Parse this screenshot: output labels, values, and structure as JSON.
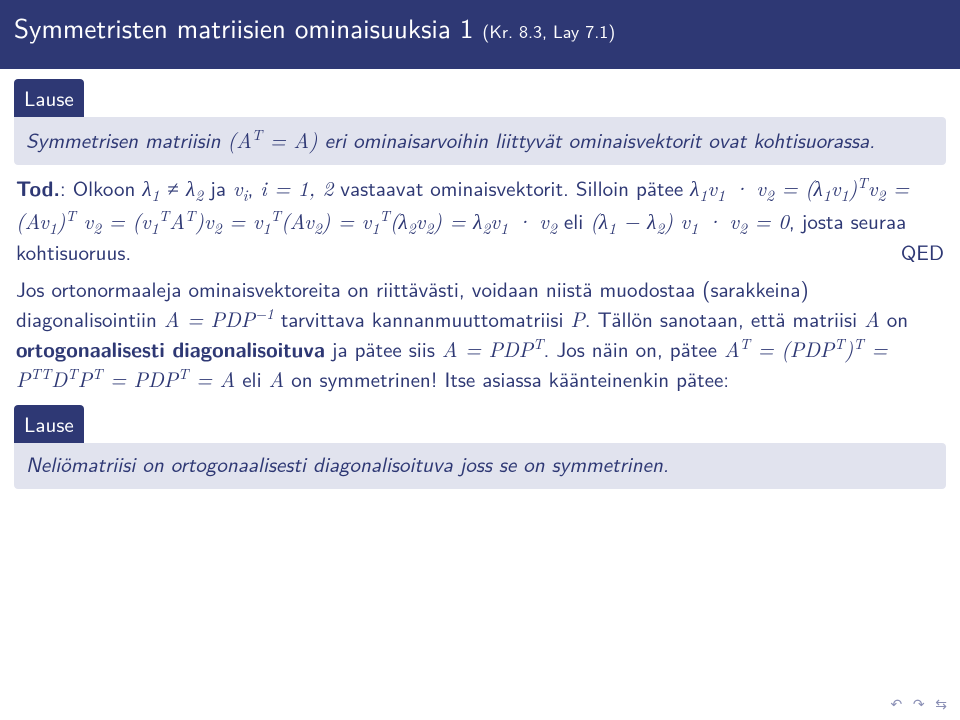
{
  "colors": {
    "header_bg": "#2e3874",
    "header_fg": "#ffffff",
    "body_fg": "#2e3874",
    "box_bg": "#e1e3ee",
    "nav_fg": "#8a8fb5",
    "page_bg": "#ffffff"
  },
  "typography": {
    "title_fontsize": 27,
    "title_ref_fontsize": 18,
    "body_fontsize": 21,
    "nav_fontsize": 14,
    "line_height": 1.32,
    "font_family_sans": "Computer Modern Sans",
    "font_family_serif": "Computer Modern Roman"
  },
  "title": {
    "main": "Symmetristen matriisien ominaisuuksia 1",
    "ref": "(Kr. 8.3, Lay 7.1)"
  },
  "box1": {
    "head": "Lause",
    "body_pre": "Symmetrisen matriisin ",
    "body_formula": "(Aᵀ = A)",
    "body_post": " eri ominaisarvoihin liittyvät ominaisvektorit ovat kohtisuorassa."
  },
  "p1": {
    "tod": "Tod.",
    "text1": ": Olkoon ",
    "f1": "λ₁ ≠ λ₂",
    "t2": " ja ",
    "f2": "vᵢ",
    "t3": ", ",
    "f3": "i = 1, 2",
    "t4": " vastaavat ominaisvektorit. Silloin pätee ",
    "f4": "λ₁v₁ · v₂ = (λ₁v₁)ᵀv₂ = (Av₁)ᵀ v₂ = (v₁ᵀAᵀ)v₂ = v₁ᵀ(Av₂) = v₁ᵀ(λ₂v₂) = λ₂v₁ · v₂",
    "t5": " eli ",
    "f5": "(λ₁ − λ₂) v₁ · v₂ = 0",
    "t6": ", josta seuraa kohtisuoruus.",
    "qed": "QED"
  },
  "p2": {
    "t1": "Jos ortonormaaleja ominaisvektoreita on riittävästi, voidaan niistä muodostaa (sarakkeina) diagonalisointiin ",
    "f1": "A = PDP⁻¹",
    "t2": " tarvittava kannanmuuttomatriisi ",
    "f2": "P",
    "t3": ". Tällön sanotaan, että matriisi ",
    "f3": "A",
    "t4": " on ",
    "bold1": "ortogonaalisesti diagonalisoituva",
    "t5": " ja pätee siis ",
    "f4": "A = PDPᵀ",
    "t6": ". Jos näin on, pätee ",
    "f5": "Aᵀ = (PDPᵀ)ᵀ = PᵀᵀDᵀPᵀ = PDPᵀ = A",
    "t7": " eli ",
    "f6": "A",
    "t8": " on symmetrinen! Itse asiassa käänteinenkin pätee:"
  },
  "box2": {
    "head": "Lause",
    "body": "Neliömatriisi on ortogonaalisesti diagonalisoituva joss se on symmetrinen."
  },
  "nav": "↺ ↻ ⇆"
}
